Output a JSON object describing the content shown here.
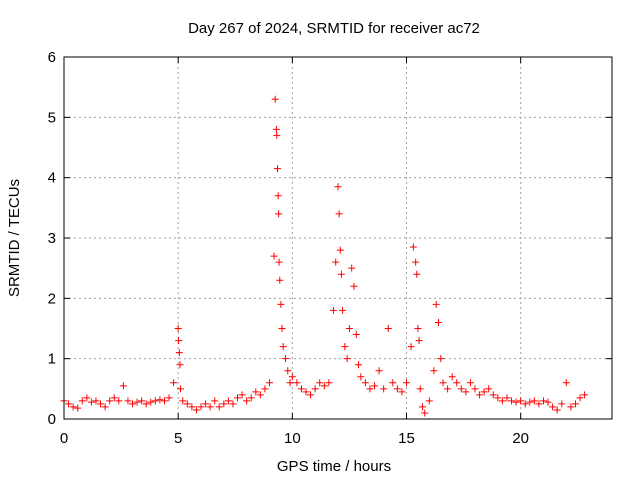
{
  "chart_data": {
    "type": "scatter",
    "title": "Day 267 of 2024, SRMTID for receiver ac72",
    "xlabel": "GPS time / hours",
    "ylabel": "SRMTID / TECUs",
    "xlim": [
      0,
      24
    ],
    "ylim": [
      0,
      6
    ],
    "xticks": [
      0,
      5,
      10,
      15,
      20
    ],
    "yticks": [
      0,
      1,
      2,
      3,
      4,
      5,
      6
    ],
    "grid": true,
    "marker": "+",
    "color": "#ff0000",
    "series": [
      {
        "name": "SRMTID",
        "x": [
          0.0,
          0.2,
          0.4,
          0.6,
          0.8,
          1.0,
          1.2,
          1.4,
          1.6,
          1.8,
          2.0,
          2.2,
          2.4,
          2.6,
          2.8,
          3.0,
          3.2,
          3.4,
          3.6,
          3.8,
          4.0,
          4.2,
          4.4,
          4.6,
          4.8,
          5.0,
          5.02,
          5.05,
          5.08,
          5.1,
          5.2,
          5.4,
          5.6,
          5.8,
          6.0,
          6.2,
          6.4,
          6.6,
          6.8,
          7.0,
          7.2,
          7.4,
          7.6,
          7.8,
          8.0,
          8.2,
          8.4,
          8.6,
          8.8,
          9.0,
          9.2,
          9.25,
          9.3,
          9.32,
          9.35,
          9.38,
          9.4,
          9.42,
          9.45,
          9.5,
          9.55,
          9.6,
          9.7,
          9.8,
          9.9,
          10.0,
          10.2,
          10.4,
          10.6,
          10.8,
          11.0,
          11.2,
          11.4,
          11.6,
          11.8,
          11.9,
          12.0,
          12.05,
          12.1,
          12.15,
          12.2,
          12.3,
          12.4,
          12.5,
          12.6,
          12.7,
          12.8,
          12.9,
          13.0,
          13.2,
          13.4,
          13.6,
          13.8,
          14.0,
          14.2,
          14.4,
          14.6,
          14.8,
          15.0,
          15.2,
          15.3,
          15.4,
          15.45,
          15.5,
          15.55,
          15.6,
          15.7,
          15.8,
          16.0,
          16.2,
          16.3,
          16.4,
          16.5,
          16.6,
          16.8,
          17.0,
          17.2,
          17.4,
          17.6,
          17.8,
          18.0,
          18.2,
          18.4,
          18.6,
          18.8,
          19.0,
          19.2,
          19.4,
          19.6,
          19.8,
          20.0,
          20.2,
          20.4,
          20.6,
          20.8,
          21.0,
          21.2,
          21.4,
          21.6,
          21.8,
          22.0,
          22.2,
          22.4,
          22.6,
          22.8
        ],
        "y": [
          0.3,
          0.25,
          0.2,
          0.18,
          0.3,
          0.35,
          0.28,
          0.3,
          0.25,
          0.2,
          0.3,
          0.35,
          0.3,
          0.55,
          0.3,
          0.25,
          0.28,
          0.3,
          0.25,
          0.28,
          0.3,
          0.32,
          0.3,
          0.35,
          0.6,
          1.5,
          1.3,
          1.1,
          0.9,
          0.5,
          0.3,
          0.25,
          0.2,
          0.15,
          0.2,
          0.25,
          0.2,
          0.3,
          0.2,
          0.25,
          0.3,
          0.25,
          0.35,
          0.4,
          0.3,
          0.35,
          0.45,
          0.4,
          0.5,
          0.6,
          2.7,
          5.3,
          4.8,
          4.7,
          4.15,
          3.7,
          3.4,
          2.6,
          2.3,
          1.9,
          1.5,
          1.2,
          1.0,
          0.8,
          0.6,
          0.7,
          0.6,
          0.5,
          0.45,
          0.4,
          0.5,
          0.6,
          0.55,
          0.6,
          1.8,
          2.6,
          3.85,
          3.4,
          2.8,
          2.4,
          1.8,
          1.2,
          1.0,
          1.5,
          2.5,
          2.2,
          1.4,
          0.9,
          0.7,
          0.6,
          0.5,
          0.55,
          0.8,
          0.5,
          1.5,
          0.6,
          0.5,
          0.45,
          0.6,
          1.2,
          2.85,
          2.6,
          2.4,
          1.5,
          1.3,
          0.5,
          0.2,
          0.1,
          0.3,
          0.8,
          1.9,
          1.6,
          1.0,
          0.6,
          0.5,
          0.7,
          0.6,
          0.5,
          0.45,
          0.6,
          0.5,
          0.4,
          0.45,
          0.5,
          0.4,
          0.35,
          0.3,
          0.35,
          0.3,
          0.28,
          0.3,
          0.25,
          0.28,
          0.3,
          0.25,
          0.3,
          0.28,
          0.2,
          0.15,
          0.25,
          0.6,
          0.2,
          0.25,
          0.35,
          0.4
        ]
      }
    ]
  }
}
